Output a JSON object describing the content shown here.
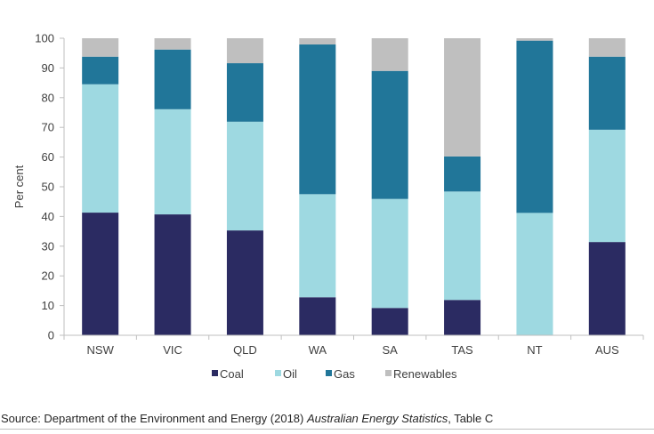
{
  "chart_data": {
    "type": "bar",
    "stacked": true,
    "ylabel": "Per cent",
    "ylim": [
      0,
      100
    ],
    "yticks": [
      0,
      10,
      20,
      30,
      40,
      50,
      60,
      70,
      80,
      90,
      100
    ],
    "categories": [
      "NSW",
      "VIC",
      "QLD",
      "WA",
      "SA",
      "TAS",
      "NT",
      "AUS"
    ],
    "series": [
      {
        "name": "Coal",
        "color": "#2b2b62",
        "values": [
          41.3,
          40.7,
          35.3,
          12.8,
          9.2,
          11.9,
          0.0,
          31.4
        ]
      },
      {
        "name": "Oil",
        "color": "#9ed9e1",
        "values": [
          43.2,
          35.4,
          36.6,
          34.7,
          36.7,
          36.5,
          41.2,
          37.8
        ]
      },
      {
        "name": "Gas",
        "color": "#217699",
        "values": [
          9.3,
          20.1,
          19.7,
          50.4,
          43.1,
          11.8,
          58.0,
          24.6
        ]
      },
      {
        "name": "Renewables",
        "color": "#bfbfbf",
        "values": [
          6.2,
          3.8,
          8.4,
          2.1,
          11.0,
          39.8,
          0.8,
          6.2
        ]
      }
    ],
    "legend": "bottom",
    "grid": false
  },
  "source": {
    "prefix": "Source: Department of the Environment and Energy (2018) ",
    "title": "Australian Energy Statistics",
    "suffix": ", Table C"
  }
}
